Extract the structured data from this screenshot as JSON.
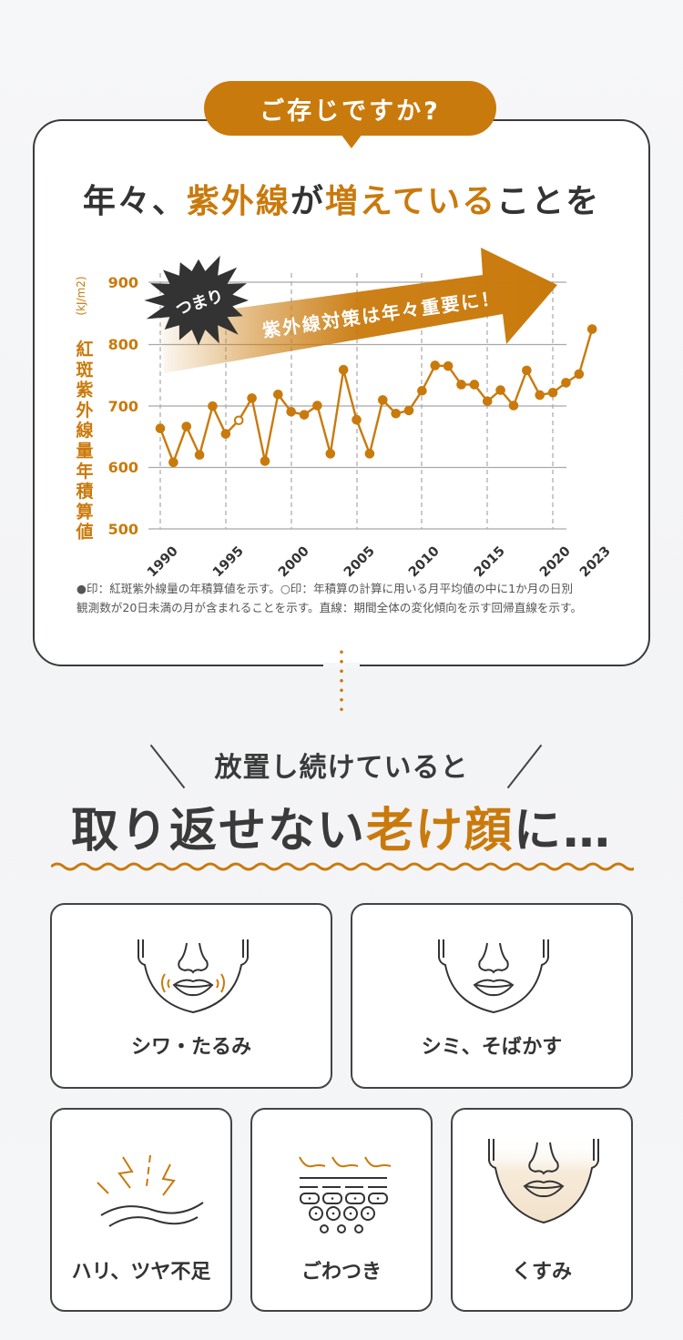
{
  "badge": {
    "label": "ご存じですか?"
  },
  "headline": {
    "parts": [
      "年々、",
      "紫外線",
      "が",
      "増えている",
      "ことを"
    ]
  },
  "callout": {
    "burst_label": "つまり",
    "arrow_label": "紫外線対策は年々重要に！"
  },
  "chart_data": {
    "type": "line",
    "title": "",
    "ylabel": "紅斑紫外線量年積算値",
    "yunit": "(kJ/m2)",
    "xlabel": "",
    "ylim": [
      500,
      900
    ],
    "yticks": [
      500,
      600,
      700,
      800,
      900
    ],
    "xticks": [
      "1990",
      "1995",
      "2000",
      "2005",
      "2010",
      "2015",
      "2020",
      "2023"
    ],
    "grid": {
      "horizontal": true,
      "vertical_dashed": true
    },
    "x": [
      1990,
      1991,
      1992,
      1993,
      1994,
      1995,
      1996,
      1997,
      1998,
      1999,
      2000,
      2001,
      2002,
      2003,
      2004,
      2005,
      2006,
      2007,
      2008,
      2009,
      2010,
      2011,
      2012,
      2013,
      2014,
      2015,
      2016,
      2017,
      2018,
      2019,
      2020,
      2021,
      2022,
      2023
    ],
    "series": [
      {
        "name": "紅斑紫外線量の年積算値",
        "color": "#C97A0C",
        "values": [
          663,
          608,
          666,
          620,
          699,
          654,
          676,
          712,
          610,
          718,
          690,
          685,
          700,
          622,
          758,
          677,
          622,
          709,
          687,
          692,
          724,
          765,
          764,
          734,
          734,
          707,
          725,
          700,
          757,
          717,
          721,
          737,
          751,
          824
        ],
        "open_markers": [
          1996
        ]
      }
    ],
    "annotation": "紫外線対策は年々重要に！"
  },
  "chart": {
    "y_unit_label": "(kJ/m2)",
    "y_axis_title": "紅斑紫外線量年積算値",
    "yticks": [
      "900",
      "800",
      "700",
      "600",
      "500"
    ],
    "xticks": [
      "1990",
      "1995",
      "2000",
      "2005",
      "2010",
      "2015",
      "2020",
      "2023"
    ]
  },
  "note": {
    "line1": "●印：紅斑紫外線量の年積算値を示す。○印：年積算の計算に用いる月平均値の中に1か月の日別",
    "line2": "観測数が20日未満の月が含まれることを示す。直線：期間全体の変化傾向を示す回帰直線を示す。"
  },
  "section2": {
    "subtitle": "放置し続けていると",
    "title_parts": [
      "取り返せない",
      "老け顔",
      "に…"
    ]
  },
  "cards": [
    {
      "label": "シワ・たるみ",
      "icon": "face-wrinkle-sagging-icon"
    },
    {
      "label": "シミ、そばかす",
      "icon": "face-spots-icon"
    },
    {
      "label": "ハリ、ツヤ不足",
      "icon": "skin-firmness-lack-icon"
    },
    {
      "label": "ごわつき",
      "icon": "skin-roughness-icon"
    },
    {
      "label": "くすみ",
      "icon": "face-dullness-icon"
    }
  ],
  "colors": {
    "accent": "#C97A0C",
    "text": "#333333",
    "burst": "#333333",
    "grid": "#999999"
  }
}
